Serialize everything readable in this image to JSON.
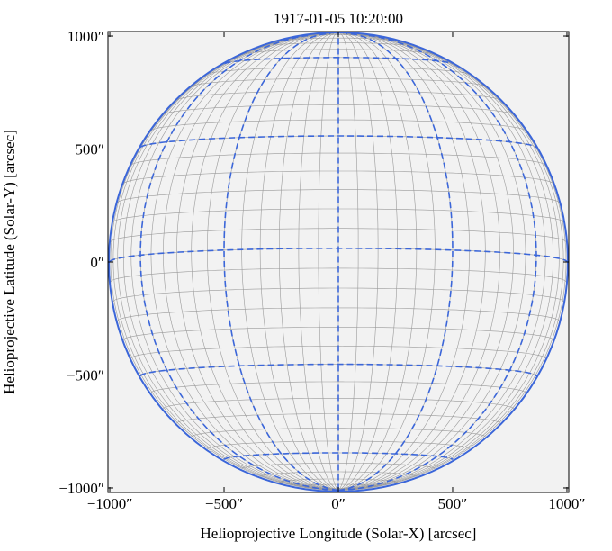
{
  "chart_data": {
    "type": "image",
    "title": "1917-01-05 10:20:00",
    "x_label": "Helioprojective Longitude (Solar-X) [arcsec]",
    "y_label": "Helioprojective Latitude (Solar-Y) [arcsec]",
    "xlim": [
      -1008,
      1008
    ],
    "ylim": [
      -1020,
      1020
    ],
    "xticks": [
      {
        "value": -1000,
        "label": "−1000″"
      },
      {
        "value": -500,
        "label": "−500″"
      },
      {
        "value": 0,
        "label": "0″"
      },
      {
        "value": 500,
        "label": "500″"
      },
      {
        "value": 1000,
        "label": "1000″"
      }
    ],
    "yticks": [
      {
        "value": -1000,
        "label": "−1000″"
      },
      {
        "value": -500,
        "label": "−500″"
      },
      {
        "value": 0,
        "label": "0″"
      },
      {
        "value": 500,
        "label": "500″"
      },
      {
        "value": 1000,
        "label": "1000″"
      }
    ]
  }
}
